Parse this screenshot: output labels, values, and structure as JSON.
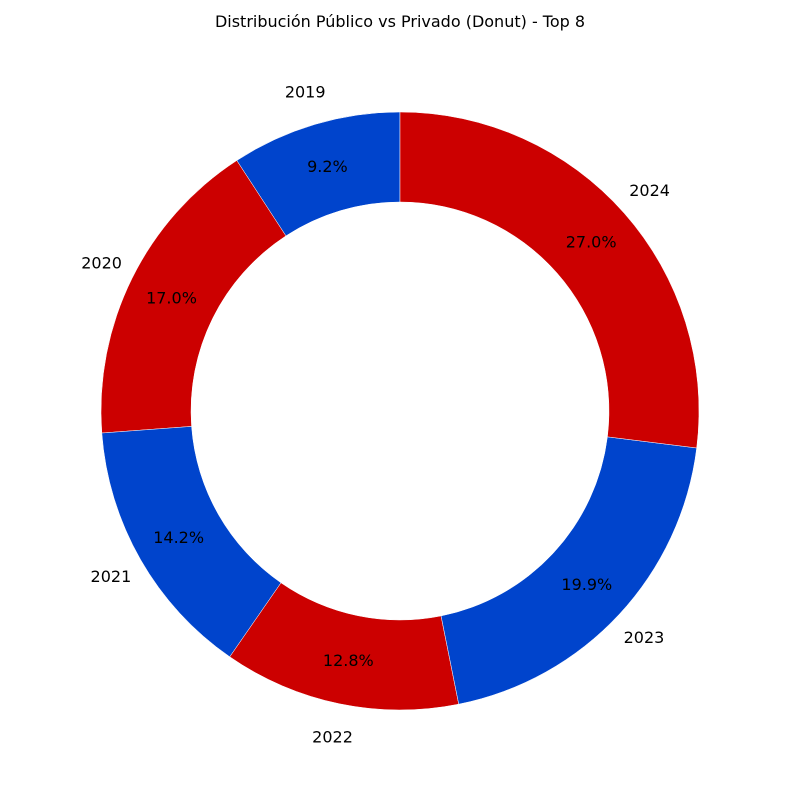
{
  "chart_data": {
    "type": "pie",
    "variant": "donut",
    "title": "Distribución Público vs Privado (Donut) - Top 8",
    "categories": [
      "2019",
      "2020",
      "2021",
      "2022",
      "2023",
      "2024"
    ],
    "values": [
      9.2,
      17.0,
      14.2,
      12.8,
      19.9,
      27.0
    ],
    "percent_labels": [
      "9.2%",
      "17.0%",
      "14.2%",
      "12.8%",
      "19.9%",
      "27.0%"
    ],
    "colors": [
      "#0044cc",
      "#cc0000",
      "#0044cc",
      "#cc0000",
      "#0044cc",
      "#cc0000"
    ],
    "start_angle_deg": 90,
    "direction": "counterclockwise",
    "legend": false
  }
}
